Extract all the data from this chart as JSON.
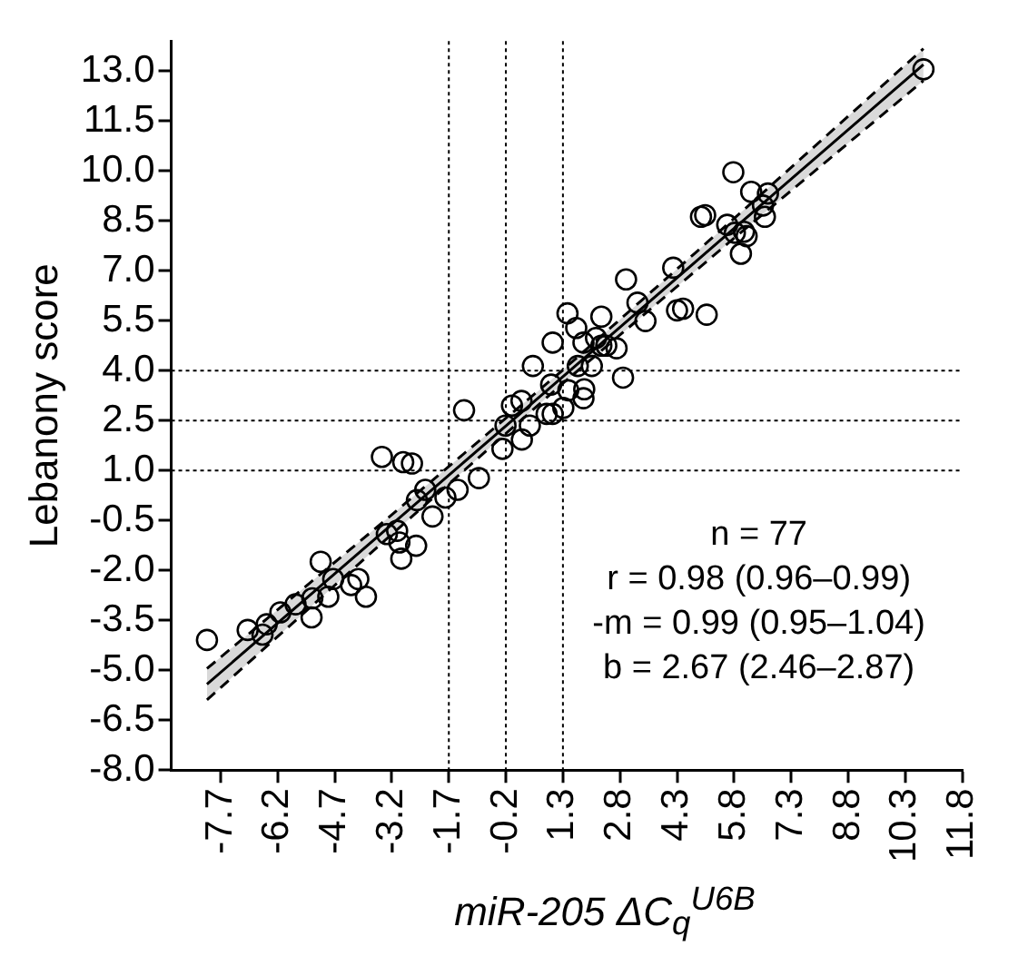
{
  "chart_data": {
    "type": "scatter",
    "ylabel": "Lebanony score",
    "xlabel": "miR-205 ΔC$_{q}$$^{U6B}$",
    "xlim": [
      -9.0,
      11.8
    ],
    "xticks": [
      -7.7,
      -6.2,
      -4.7,
      -3.2,
      -1.7,
      -0.2,
      1.3,
      2.8,
      4.3,
      5.8,
      7.3,
      8.8,
      10.3,
      11.8
    ],
    "ylim": [
      -8.0,
      13.9
    ],
    "yticks": [
      {
        "value": -8,
        "label": "-8.0"
      },
      -6.5,
      {
        "value": -5,
        "label": "-5.0"
      },
      -3.5,
      {
        "value": -2,
        "label": "-2.0"
      },
      -0.5,
      {
        "value": 1,
        "label": "1.0"
      },
      2.5,
      {
        "value": 4,
        "label": "4.0"
      },
      5.5,
      {
        "value": 7,
        "label": "7.0"
      },
      8.5,
      {
        "value": 10,
        "label": "10.0"
      },
      11.5,
      {
        "value": 13,
        "label": "13.0"
      }
    ],
    "grid": false,
    "legend": false,
    "marker": "circle",
    "series": [
      {
        "type": "scatter",
        "color": "#000000",
        "x": [
          -8.06,
          -6.99,
          -6.6,
          -6.49,
          -6.13,
          -5.73,
          -5.29,
          -5.31,
          -5.07,
          -4.87,
          -4.74,
          -4.27,
          -4.08,
          -3.88,
          -3.46,
          -3.33,
          -3.06,
          -3.0,
          -2.95,
          -2.9,
          -2.67,
          -2.56,
          -2.54,
          -2.32,
          -2.13,
          -1.79,
          -1.47,
          -1.3,
          -0.91,
          -0.29,
          -0.21,
          -0.04,
          0.21,
          0.22,
          0.43,
          0.87,
          1.03,
          0.99,
          1.31,
          1.44,
          1.86,
          1.84,
          1.42,
          1.65,
          2.31,
          1.84,
          2.17,
          1.03,
          0.51,
          2.06,
          10.78,
          5.78,
          6.25,
          6.69,
          6.56,
          6.61,
          4.93,
          5.04,
          5.62,
          5.82,
          6.06,
          6.13,
          5.98,
          4.2,
          2.96,
          3.26,
          3.47,
          4.3,
          4.46,
          5.08,
          2.31,
          2.44,
          2.71,
          1.69,
          2.88
        ],
        "values": [
          -4.09,
          -3.79,
          -3.93,
          -3.62,
          -3.26,
          -3.02,
          -2.84,
          -3.41,
          -1.74,
          -2.79,
          -2.26,
          -2.44,
          -2.26,
          -2.79,
          1.41,
          -0.91,
          -0.81,
          -1.16,
          -1.65,
          1.25,
          1.21,
          -1.26,
          0.11,
          0.42,
          -0.38,
          0.19,
          0.42,
          2.81,
          0.77,
          1.65,
          2.35,
          2.95,
          3.09,
          1.93,
          2.35,
          2.7,
          2.7,
          3.58,
          2.88,
          3.41,
          3.44,
          3.17,
          5.72,
          5.28,
          5.62,
          4.84,
          4.98,
          4.84,
          4.14,
          4.14,
          13.05,
          9.96,
          9.37,
          9.32,
          8.96,
          8.62,
          8.62,
          8.67,
          8.38,
          8.14,
          8.17,
          8.04,
          7.51,
          7.09,
          6.74,
          6.04,
          5.49,
          5.81,
          5.86,
          5.68,
          4.75,
          4.75,
          4.67,
          4.14,
          3.79
        ]
      },
      {
        "type": "line",
        "color": "#000000",
        "marker": "none",
        "line_style": "dashed",
        "x": [
          -8.06,
          -3.4,
          1.3,
          6.0,
          10.78
        ],
        "values": [
          -5.89,
          -1.12,
          3.62,
          8.17,
          12.71
        ]
      },
      {
        "type": "line",
        "color": "#000000",
        "marker": "none",
        "line_style": "dashed",
        "x": [
          -8.06,
          -3.4,
          1.3,
          6.0,
          10.78
        ],
        "values": [
          -4.95,
          -0.52,
          4.02,
          8.77,
          13.67
        ]
      },
      {
        "type": "line",
        "color": "#000000",
        "marker": "none",
        "line_style": "solid",
        "x": [
          -8.06,
          -3.4,
          1.3,
          6.0,
          10.78
        ],
        "values": [
          -5.42,
          -0.82,
          3.82,
          8.47,
          13.19
        ],
        "lower": [
          -5.89,
          -1.12,
          3.62,
          8.17,
          12.71
        ],
        "upper": [
          -4.95,
          -0.52,
          4.02,
          8.77,
          13.67
        ]
      }
    ],
    "ref_lines": [
      {
        "axis": "x",
        "value": -1.7,
        "line_style": "dotted"
      },
      {
        "axis": "x",
        "value": -0.2,
        "line_style": "dotted"
      },
      {
        "axis": "x",
        "value": 1.3,
        "line_style": "dotted"
      },
      {
        "axis": "y",
        "value": 1.0,
        "line_style": "dotted"
      },
      {
        "axis": "y",
        "value": 2.5,
        "line_style": "dotted"
      },
      {
        "axis": "y",
        "value": 4.0,
        "line_style": "dotted"
      }
    ],
    "annotations": [
      "n = 77",
      "r = 0.98 (0.96–0.99)",
      "-m = 0.99 (0.95–1.04)",
      "b = 2.67 (2.46–2.87)"
    ]
  }
}
